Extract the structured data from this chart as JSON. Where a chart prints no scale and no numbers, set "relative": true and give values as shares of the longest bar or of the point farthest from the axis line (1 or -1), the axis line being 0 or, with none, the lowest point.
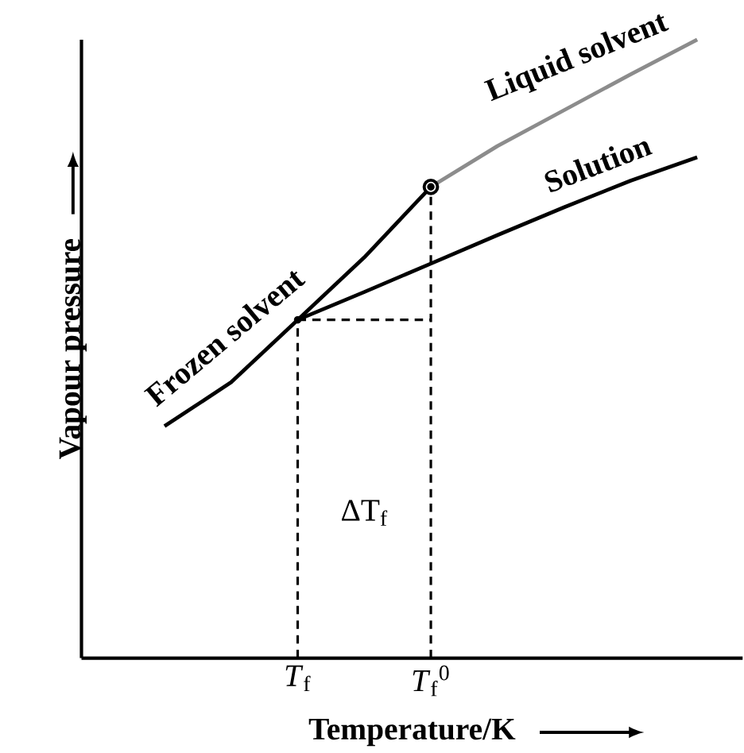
{
  "chart_data": {
    "type": "line",
    "relative": true,
    "xlabel": "Temperature/K",
    "ylabel": "Vapour pressure",
    "tick_labels": "x",
    "categories": [
      null,
      null,
      "*T*$_{f}$",
      null,
      "*T*$_{f}$$^{0}$",
      null,
      null,
      null,
      null
    ],
    "annotations": [
      "ΔT$_{f}$"
    ],
    "series": [
      {
        "name": "Frozen solvent",
        "color": "#000000",
        "values": [
          0.375,
          0.446,
          0.547,
          0.648,
          0.762,
          null,
          null,
          null,
          null
        ]
      },
      {
        "name": "Liquid solvent",
        "color": "#8c8c8c",
        "values": [
          null,
          null,
          null,
          null,
          0.762,
          0.828,
          0.886,
          0.944,
          1.0
        ]
      },
      {
        "name": "Solution",
        "color": "#000000",
        "values": [
          null,
          null,
          0.547,
          0.592,
          0.638,
          0.684,
          0.729,
          0.772,
          0.81
        ]
      },
      {
        "type": "scatter",
        "color": "#000000",
        "marker": "circle",
        "values": [
          null,
          null,
          null,
          null,
          0.762,
          null,
          null,
          null,
          null
        ]
      },
      {
        "type": "lollipop",
        "color": "#000000",
        "line_style": "dashed",
        "marker": "circle",
        "values": [
          null,
          null,
          0.547,
          null,
          0.762,
          null,
          null,
          null,
          null
        ]
      },
      {
        "color": "#000000",
        "line_style": "dashed",
        "values": [
          null,
          null,
          0.547,
          0.547,
          0.547,
          null,
          null,
          null,
          null
        ]
      }
    ]
  }
}
